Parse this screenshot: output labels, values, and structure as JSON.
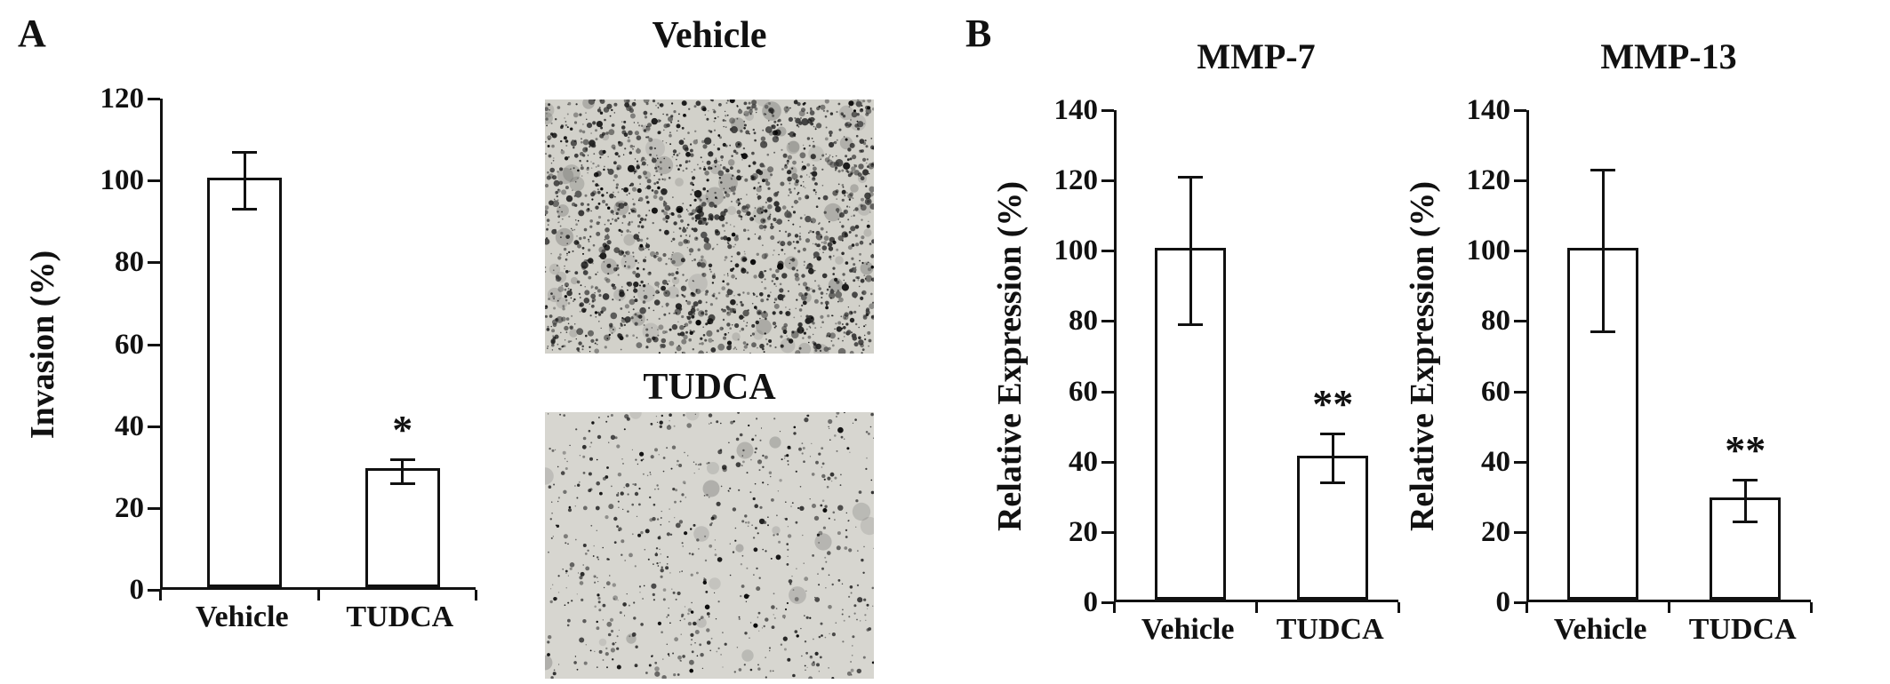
{
  "figure": {
    "panel_a_label": "A",
    "panel_b_label": "B"
  },
  "micrographs": {
    "vehicle_title": "Vehicle",
    "tudca_title": "TUDCA"
  },
  "chart_data": [
    {
      "id": "invasion",
      "type": "bar",
      "panel": "A",
      "title": "",
      "ylabel": "Invasion (%)",
      "xlabel": "",
      "ylim": [
        0,
        120
      ],
      "yticks": [
        0,
        20,
        40,
        60,
        80,
        100,
        120
      ],
      "grid": false,
      "legend": "none",
      "categories": [
        "Vehicle",
        "TUDCA"
      ],
      "values": [
        100,
        29
      ],
      "errors": [
        7,
        3
      ],
      "annotations": [
        "",
        "*"
      ],
      "bar_fill": "#ffffff",
      "bar_stroke": "#111111"
    },
    {
      "id": "mmp7",
      "type": "bar",
      "panel": "B",
      "title": "MMP-7",
      "ylabel": "Relative Expression (%)",
      "xlabel": "",
      "ylim": [
        0,
        140
      ],
      "yticks": [
        0,
        20,
        40,
        60,
        80,
        100,
        120,
        140
      ],
      "grid": false,
      "legend": "none",
      "categories": [
        "Vehicle",
        "TUDCA"
      ],
      "values": [
        100,
        41
      ],
      "errors": [
        21,
        7
      ],
      "annotations": [
        "",
        "**"
      ],
      "bar_fill": "#ffffff",
      "bar_stroke": "#111111"
    },
    {
      "id": "mmp13",
      "type": "bar",
      "panel": "B",
      "title": "MMP-13",
      "ylabel": "Relative Expression (%)",
      "xlabel": "",
      "ylim": [
        0,
        140
      ],
      "yticks": [
        0,
        20,
        40,
        60,
        80,
        100,
        120,
        140
      ],
      "grid": false,
      "legend": "none",
      "categories": [
        "Vehicle",
        "TUDCA"
      ],
      "values": [
        100,
        29
      ],
      "errors": [
        23,
        6
      ],
      "annotations": [
        "",
        "**"
      ],
      "bar_fill": "#ffffff",
      "bar_stroke": "#111111"
    }
  ]
}
